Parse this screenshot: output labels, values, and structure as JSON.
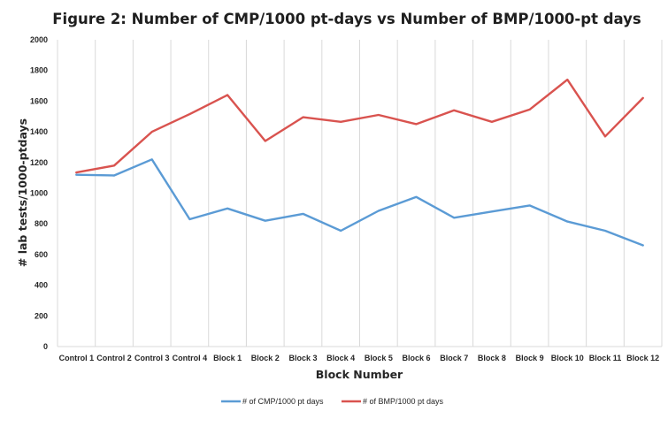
{
  "chart_data": {
    "type": "line",
    "title": "Figure 2: Number of CMP/1000 pt-days vs Number of BMP/1000-pt days",
    "xlabel": "Block Number",
    "ylabel": "# lab tests/1000-ptdays",
    "ylim": [
      0,
      2000
    ],
    "yticks": [
      "0",
      "200",
      "400",
      "600",
      "800",
      "1000",
      "1200",
      "1400",
      "1600",
      "1800",
      "2000"
    ],
    "categories": [
      "Control 1",
      "Control 2",
      "Control 3",
      "Control 4",
      "Block 1",
      "Block 2",
      "Block 3",
      "Block 4",
      "Block 5",
      "Block 6",
      "Block 7",
      "Block 8",
      "Block 9",
      "Block 10",
      "Block 11",
      "Block 12"
    ],
    "grid": "vertical",
    "legend_position": "bottom",
    "series": [
      {
        "name": "# of CMP/1000 pt days",
        "color": "#5b9bd5",
        "values": [
          1120,
          1115,
          1220,
          830,
          900,
          820,
          865,
          755,
          885,
          975,
          840,
          880,
          920,
          815,
          755,
          660
        ]
      },
      {
        "name": "# of BMP/1000 pt days",
        "color": "#d9534f",
        "values": [
          1135,
          1180,
          1400,
          1515,
          1640,
          1340,
          1495,
          1465,
          1510,
          1450,
          1540,
          1465,
          1545,
          1740,
          1370,
          1620
        ]
      }
    ]
  }
}
